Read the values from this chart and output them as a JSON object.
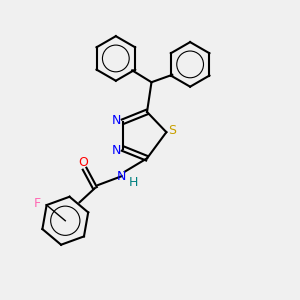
{
  "bg_color": "#f0f0f0",
  "atom_colors": {
    "N": "#0000ff",
    "S": "#c8a000",
    "O": "#ff0000",
    "F": "#ff69b4",
    "H": "#008080",
    "C": "#000000"
  },
  "bond_color": "#000000",
  "font_size_atom": 9,
  "fig_width": 3.0,
  "fig_height": 3.0,
  "dpi": 100
}
